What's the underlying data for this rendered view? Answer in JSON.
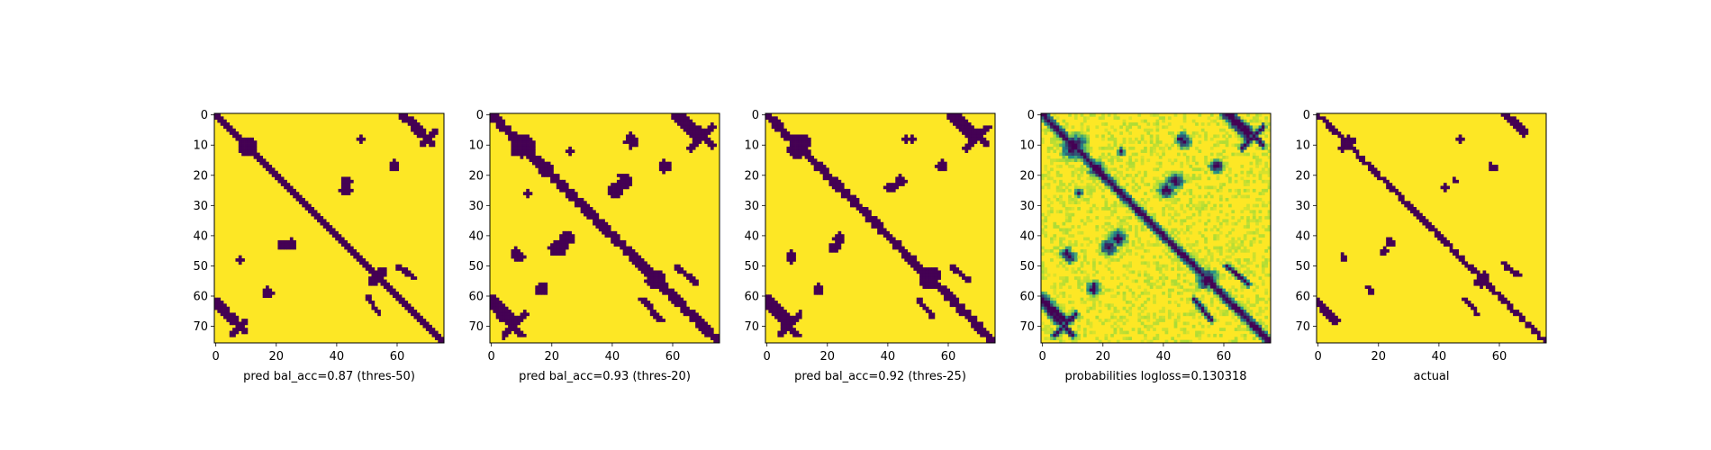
{
  "colors": {
    "low": "#440154",
    "mid": "#21918c",
    "light": "#a0da39",
    "high": "#fde725"
  },
  "chart_data": [
    {
      "type": "heatmap",
      "title": "",
      "xlabel": "pred bal_acc=0.87 (thres-50)",
      "ylabel": "",
      "size": 76,
      "xlim": [
        0,
        76
      ],
      "ylim": [
        76,
        0
      ],
      "xticks": [
        "0",
        "20",
        "40",
        "60"
      ],
      "yticks": [
        "0",
        "10",
        "20",
        "30",
        "40",
        "50",
        "60",
        "70"
      ],
      "colormap": "viridis",
      "value_range": [
        0,
        1
      ],
      "seed": 11,
      "blobs": [
        {
          "r": 10,
          "c": 11,
          "rad": 3
        },
        {
          "r": 52,
          "c": 55,
          "rad": 2
        },
        {
          "r": 22,
          "c": 43,
          "rad": 2
        },
        {
          "r": 43,
          "c": 25,
          "rad": 2
        },
        {
          "r": 17,
          "c": 59,
          "rad": 2
        },
        {
          "r": 59,
          "c": 17,
          "rad": 1
        },
        {
          "r": 48,
          "c": 8,
          "rad": 1
        },
        {
          "r": 8,
          "c": 48,
          "rad": 1
        }
      ],
      "streaks": [
        {
          "r0": 5,
          "c0": 68,
          "r1": 0,
          "c1": 62,
          "w": 1.2
        },
        {
          "r0": 62,
          "c0": 0,
          "r1": 68,
          "c1": 6,
          "w": 1.6
        },
        {
          "r0": 66,
          "c0": 4,
          "r1": 72,
          "c1": 10,
          "w": 0.6
        },
        {
          "r0": 5,
          "c0": 73,
          "r1": 10,
          "c1": 68,
          "w": 0.6
        },
        {
          "r0": 50,
          "c0": 60,
          "r1": 54,
          "c1": 66,
          "w": 0.6
        }
      ],
      "diag_width": 1.6,
      "soft": false,
      "noise": 0.08
    },
    {
      "type": "heatmap",
      "title": "",
      "xlabel": "pred bal_acc=0.93 (thres-20)",
      "ylabel": "",
      "size": 76,
      "xlim": [
        0,
        76
      ],
      "ylim": [
        76,
        0
      ],
      "xticks": [
        "0",
        "20",
        "40",
        "60"
      ],
      "yticks": [
        "0",
        "10",
        "20",
        "30",
        "40",
        "50",
        "60",
        "70"
      ],
      "colormap": "viridis",
      "value_range": [
        0,
        1
      ],
      "seed": 23,
      "blobs": [
        {
          "r": 10,
          "c": 11,
          "rad": 4
        },
        {
          "r": 18,
          "c": 18,
          "rad": 3
        },
        {
          "r": 54,
          "c": 55,
          "rad": 3
        },
        {
          "r": 22,
          "c": 44,
          "rad": 3
        },
        {
          "r": 41,
          "c": 25,
          "rad": 3
        },
        {
          "r": 17,
          "c": 58,
          "rad": 2
        },
        {
          "r": 57,
          "c": 17,
          "rad": 2
        },
        {
          "r": 8,
          "c": 46,
          "rad": 2
        },
        {
          "r": 47,
          "c": 9,
          "rad": 2
        },
        {
          "r": 12,
          "c": 26,
          "rad": 1
        }
      ],
      "streaks": [
        {
          "r0": 6,
          "c0": 69,
          "r1": 0,
          "c1": 62,
          "w": 1.6
        },
        {
          "r0": 61,
          "c0": 0,
          "r1": 68,
          "c1": 7,
          "w": 2.0
        },
        {
          "r0": 66,
          "c0": 3,
          "r1": 73,
          "c1": 10,
          "w": 1.0
        },
        {
          "r0": 4,
          "c0": 73,
          "r1": 11,
          "c1": 66,
          "w": 1.0
        },
        {
          "r0": 50,
          "c0": 61,
          "r1": 56,
          "c1": 68,
          "w": 0.8
        }
      ],
      "diag_width": 2.2,
      "soft": false,
      "noise": 0.12
    },
    {
      "type": "heatmap",
      "title": "",
      "xlabel": "pred bal_acc=0.92 (thres-25)",
      "ylabel": "",
      "size": 76,
      "xlim": [
        0,
        76
      ],
      "ylim": [
        76,
        0
      ],
      "xticks": [
        "0",
        "20",
        "40",
        "60"
      ],
      "yticks": [
        "0",
        "10",
        "20",
        "30",
        "40",
        "50",
        "60",
        "70"
      ],
      "colormap": "viridis",
      "value_range": [
        0,
        1
      ],
      "seed": 37,
      "blobs": [
        {
          "r": 10,
          "c": 11,
          "rad": 4
        },
        {
          "r": 17,
          "c": 17,
          "rad": 2
        },
        {
          "r": 53,
          "c": 55,
          "rad": 3
        },
        {
          "r": 22,
          "c": 44,
          "rad": 2
        },
        {
          "r": 41,
          "c": 24,
          "rad": 2
        },
        {
          "r": 17,
          "c": 58,
          "rad": 2
        },
        {
          "r": 58,
          "c": 17,
          "rad": 2
        },
        {
          "r": 8,
          "c": 46,
          "rad": 1
        },
        {
          "r": 48,
          "c": 8,
          "rad": 1
        }
      ],
      "streaks": [
        {
          "r0": 6,
          "c0": 69,
          "r1": 0,
          "c1": 62,
          "w": 1.5
        },
        {
          "r0": 61,
          "c0": 0,
          "r1": 68,
          "c1": 7,
          "w": 1.8
        },
        {
          "r0": 66,
          "c0": 3,
          "r1": 73,
          "c1": 10,
          "w": 0.9
        },
        {
          "r0": 4,
          "c0": 73,
          "r1": 11,
          "c1": 66,
          "w": 0.8
        },
        {
          "r0": 50,
          "c0": 61,
          "r1": 55,
          "c1": 67,
          "w": 0.7
        }
      ],
      "diag_width": 2.0,
      "soft": false,
      "noise": 0.1
    },
    {
      "type": "heatmap",
      "title": "",
      "xlabel": "probabilities logloss=0.130318",
      "ylabel": "",
      "size": 76,
      "xlim": [
        0,
        76
      ],
      "ylim": [
        76,
        0
      ],
      "xticks": [
        "0",
        "20",
        "40",
        "60"
      ],
      "yticks": [
        "0",
        "10",
        "20",
        "30",
        "40",
        "50",
        "60",
        "70"
      ],
      "colormap": "viridis",
      "value_range": [
        0,
        1
      ],
      "seed": 41,
      "blobs": [
        {
          "r": 10,
          "c": 11,
          "rad": 4
        },
        {
          "r": 18,
          "c": 18,
          "rad": 3
        },
        {
          "r": 54,
          "c": 55,
          "rad": 3
        },
        {
          "r": 22,
          "c": 44,
          "rad": 3
        },
        {
          "r": 41,
          "c": 25,
          "rad": 3
        },
        {
          "r": 17,
          "c": 58,
          "rad": 2
        },
        {
          "r": 57,
          "c": 17,
          "rad": 2
        },
        {
          "r": 8,
          "c": 46,
          "rad": 2
        },
        {
          "r": 47,
          "c": 9,
          "rad": 2
        },
        {
          "r": 12,
          "c": 26,
          "rad": 1
        }
      ],
      "streaks": [
        {
          "r0": 6,
          "c0": 69,
          "r1": 0,
          "c1": 62,
          "w": 1.6
        },
        {
          "r0": 61,
          "c0": 0,
          "r1": 68,
          "c1": 7,
          "w": 2.0
        },
        {
          "r0": 66,
          "c0": 3,
          "r1": 73,
          "c1": 10,
          "w": 1.0
        },
        {
          "r0": 4,
          "c0": 73,
          "r1": 11,
          "c1": 66,
          "w": 1.0
        },
        {
          "r0": 50,
          "c0": 61,
          "r1": 56,
          "c1": 68,
          "w": 0.8
        }
      ],
      "diag_width": 2.2,
      "soft": true,
      "noise": 0.18
    },
    {
      "type": "heatmap",
      "title": "",
      "xlabel": "actual",
      "ylabel": "",
      "size": 76,
      "xlim": [
        0,
        76
      ],
      "ylim": [
        76,
        0
      ],
      "xticks": [
        "0",
        "20",
        "40",
        "60"
      ],
      "yticks": [
        "0",
        "10",
        "20",
        "30",
        "40",
        "50",
        "60",
        "70"
      ],
      "colormap": "viridis",
      "value_range": [
        0,
        1
      ],
      "seed": 53,
      "blobs": [
        {
          "r": 9,
          "c": 10,
          "rad": 2
        },
        {
          "r": 54,
          "c": 55,
          "rad": 2
        },
        {
          "r": 22,
          "c": 45,
          "rad": 1
        },
        {
          "r": 42,
          "c": 24,
          "rad": 1
        },
        {
          "r": 17,
          "c": 58,
          "rad": 1
        },
        {
          "r": 58,
          "c": 17,
          "rad": 1
        },
        {
          "r": 8,
          "c": 47,
          "rad": 1
        },
        {
          "r": 47,
          "c": 8,
          "rad": 1
        }
      ],
      "streaks": [
        {
          "r0": 5,
          "c0": 68,
          "r1": 0,
          "c1": 62,
          "w": 1.0
        },
        {
          "r0": 62,
          "c0": 0,
          "r1": 68,
          "c1": 6,
          "w": 1.0
        },
        {
          "r0": 49,
          "c0": 61,
          "r1": 53,
          "c1": 66,
          "w": 0.6
        }
      ],
      "diag_width": 1.2,
      "soft": false,
      "noise": 0.22
    }
  ]
}
